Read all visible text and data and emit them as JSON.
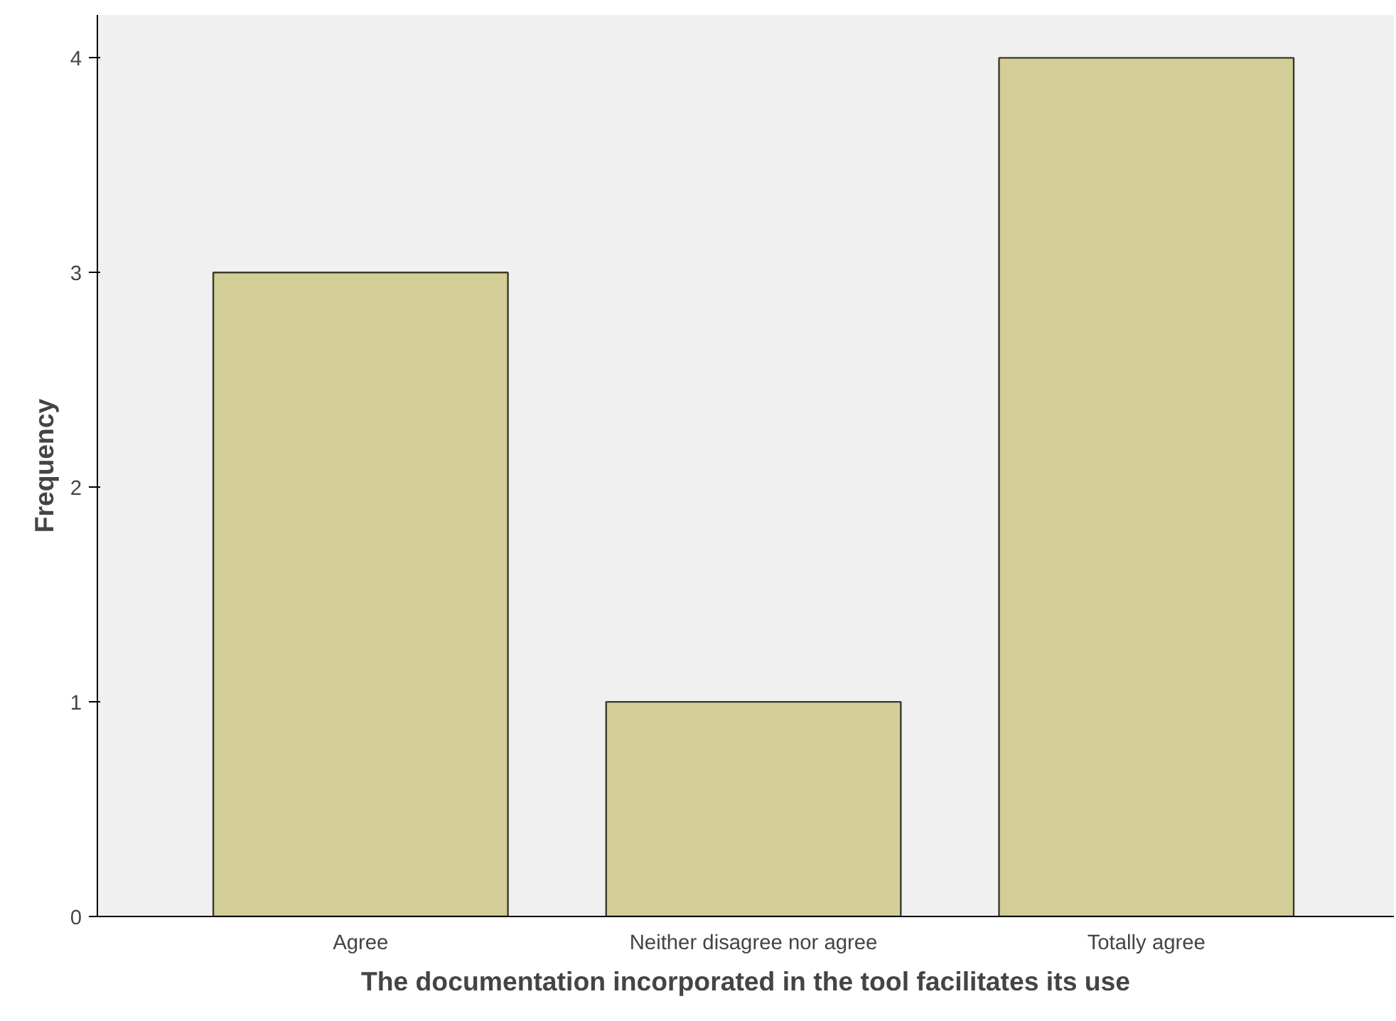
{
  "chart_data": {
    "type": "bar",
    "xlabel": "The documentation incorporated in the tool facilitates its use",
    "ylabel": "Frequency",
    "categories": [
      "Agree",
      "Neither disagree nor agree",
      "Totally agree"
    ],
    "values": [
      3,
      1,
      4
    ],
    "color": "#d3ce97",
    "ylim": [
      0,
      4.2
    ],
    "yticks": [
      0,
      1,
      2,
      3,
      4
    ],
    "grid": false
  }
}
